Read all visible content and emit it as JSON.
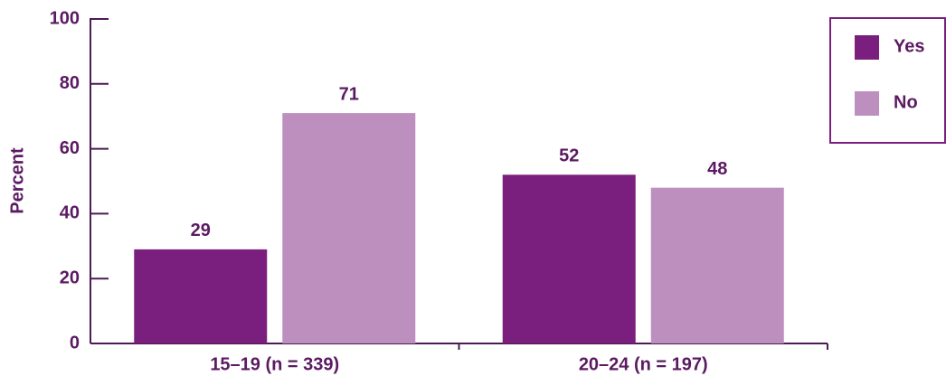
{
  "chart_data": {
    "type": "bar",
    "ylabel": "Percent",
    "categories": [
      "15–19 (n = 339)",
      "20–24 (n = 197)"
    ],
    "series": [
      {
        "name": "Yes",
        "color": "#7a1f7d",
        "values": [
          29,
          52
        ]
      },
      {
        "name": "No",
        "color": "#bc8fbf",
        "values": [
          71,
          48
        ]
      }
    ],
    "ylim": [
      0,
      100
    ],
    "yticks": [
      0,
      20,
      40,
      60,
      80,
      100
    ],
    "legend": "right"
  }
}
